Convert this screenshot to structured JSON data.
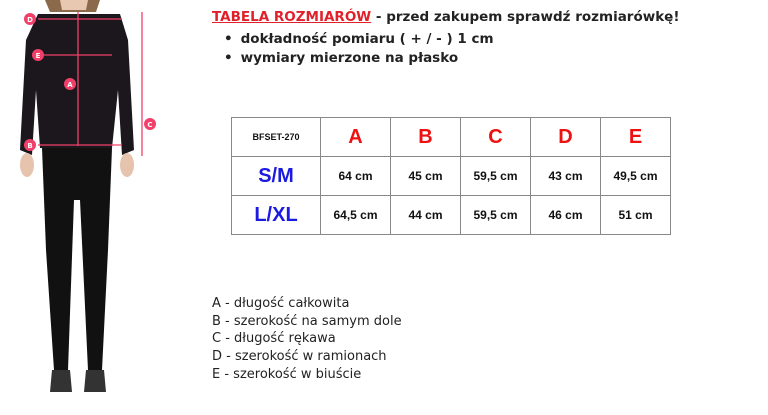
{
  "header": {
    "title": "TABELA ROZMIARÓW",
    "subtitle": " - przed zakupem sprawdź rozmiarówkę!"
  },
  "bullets": [
    "dokładność pomiaru ( + / - ) 1 cm",
    "wymiary mierzone na płasko"
  ],
  "table": {
    "code": "BFSET-270",
    "columns": [
      "A",
      "B",
      "C",
      "D",
      "E"
    ],
    "rows": [
      {
        "size": "S/M",
        "values": [
          "64 cm",
          "45 cm",
          "59,5 cm",
          "43 cm",
          "49,5 cm"
        ]
      },
      {
        "size": "L/XL",
        "values": [
          "64,5 cm",
          "44 cm",
          "59,5 cm",
          "46 cm",
          "51 cm"
        ]
      }
    ]
  },
  "legend": [
    "A - długość całkowita",
    "B - szerokość na samym dole",
    "C - długość rękawa",
    "D - szerokość w ramionach",
    "E - szerokość w biuście"
  ],
  "figure": {
    "markers": [
      "A",
      "B",
      "C",
      "D",
      "E"
    ],
    "marker_color": "#f0406a"
  },
  "colors": {
    "title": "#e0202a",
    "column_header": "#ee1111",
    "size_label": "#1a1ae0"
  }
}
